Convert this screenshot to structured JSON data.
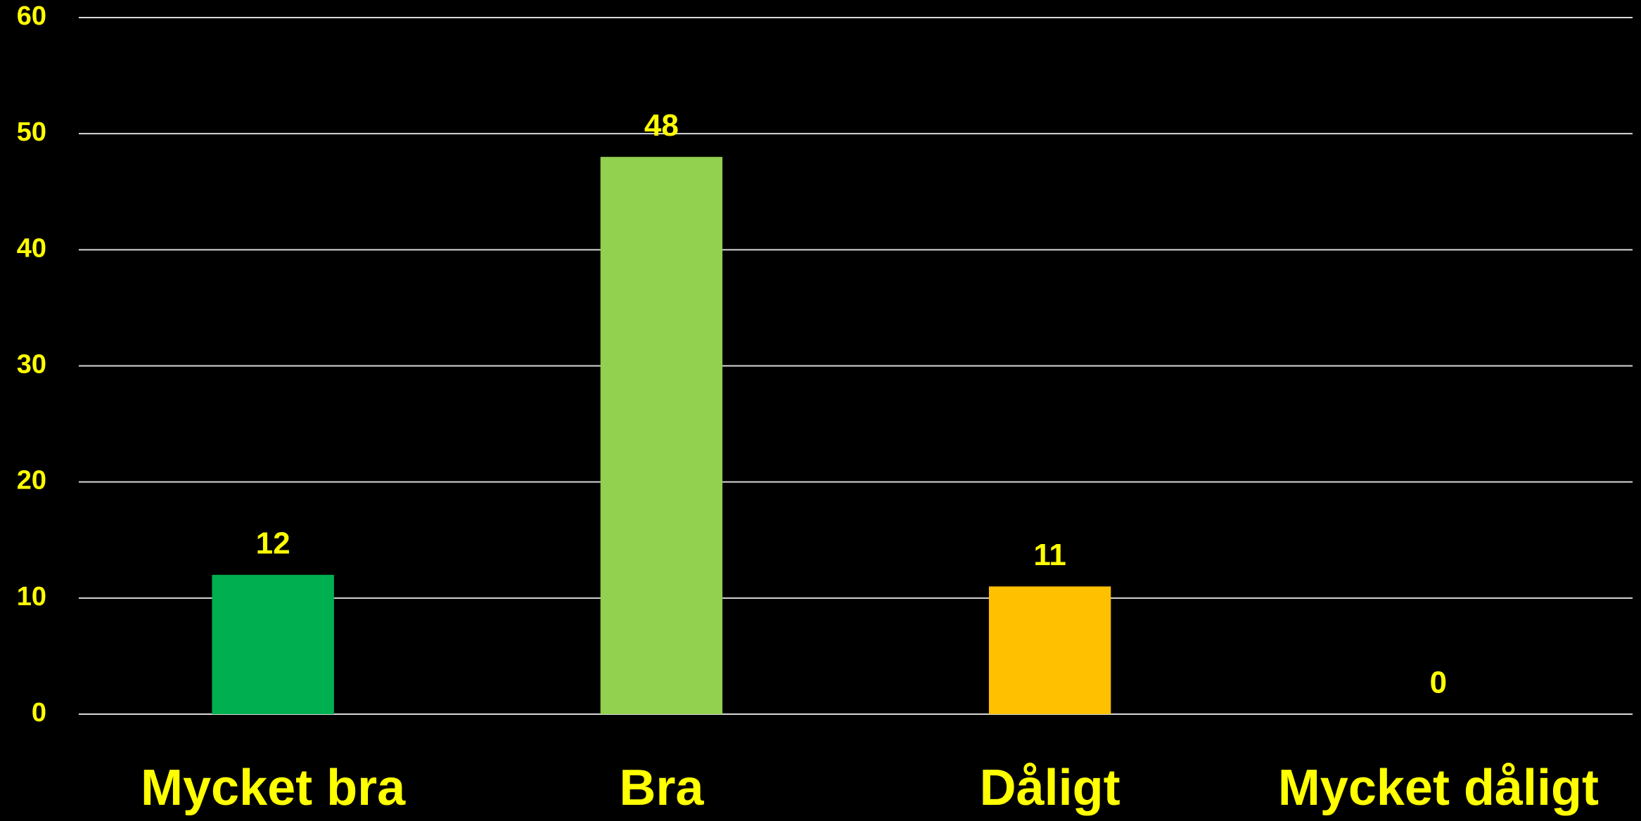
{
  "chart_data": {
    "type": "bar",
    "categories": [
      "Mycket bra",
      "Bra",
      "Dåligt",
      "Mycket dåligt"
    ],
    "values": [
      12,
      48,
      11,
      0
    ],
    "colors": [
      "#00b050",
      "#92d050",
      "#ffc000",
      "#ff0000"
    ],
    "ylim": [
      0,
      60
    ],
    "yticks": [
      0,
      10,
      20,
      30,
      40,
      50,
      60
    ],
    "grid": true
  }
}
